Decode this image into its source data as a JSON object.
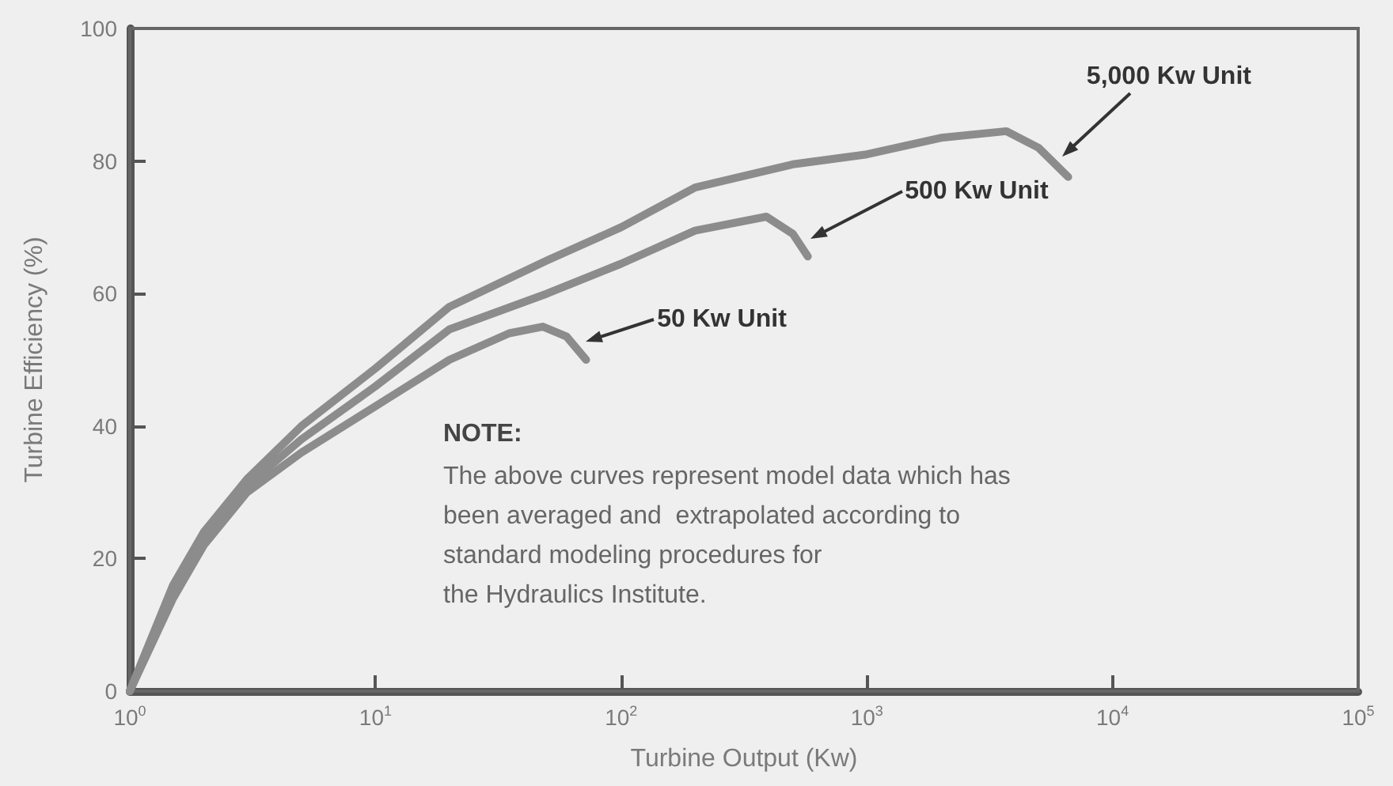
{
  "chart_data": {
    "type": "line",
    "xlabel": "Turbine Output (Kw)",
    "ylabel": "Turbine Efficiency (%)",
    "log": "x",
    "xlim": [
      1,
      100000
    ],
    "xticks": [
      {
        "value": 1,
        "label": "10$^{0}$"
      },
      {
        "value": 10,
        "label": "10$^{1}$"
      },
      {
        "value": 100,
        "label": "10$^{2}$"
      },
      {
        "value": 1000,
        "label": "10$^{3}$"
      },
      {
        "value": 10000,
        "label": "10$^{4}$"
      },
      {
        "value": 100000,
        "label": "10$^{5}$"
      }
    ],
    "ylim": [
      0,
      100
    ],
    "yticks": [
      0,
      20,
      40,
      60,
      80,
      100
    ],
    "grid": false,
    "legend": false,
    "marker": "none",
    "line_style": "solid",
    "series": [
      {
        "name": "5,000 Kw Unit",
        "color": "#8c8c8c",
        "x": [
          1,
          1.5,
          2,
          3,
          5,
          10,
          20,
          50,
          100,
          200,
          500,
          1000,
          2000,
          3700,
          5000,
          6600
        ],
        "values": [
          0,
          16,
          24,
          32,
          40,
          48.7,
          58,
          65,
          70,
          76,
          79.5,
          81,
          83.5,
          84.5,
          82,
          77.6
        ]
      },
      {
        "name": "500 Kw Unit",
        "color": "#8c8c8c",
        "x": [
          1,
          1.5,
          2,
          3,
          5,
          10,
          20,
          50,
          100,
          200,
          390,
          500,
          575
        ],
        "values": [
          0,
          15,
          23,
          31,
          38,
          46,
          54.6,
          60,
          64.5,
          69.5,
          71.6,
          69,
          65.6
        ]
      },
      {
        "name": "50 Kw Unit",
        "color": "#8c8c8c",
        "x": [
          1,
          1.5,
          2,
          3,
          5,
          10,
          20,
          35,
          48,
          60,
          72
        ],
        "values": [
          0,
          14,
          22,
          30,
          36,
          43,
          50,
          54,
          55,
          53.5,
          50
        ]
      }
    ],
    "annotations": [
      "NOTE:",
      "The above curves represent model data which has\nbeen averaged and  extrapolated according to\nstandard modeling procedures for\nthe Hydraulics Institute."
    ]
  }
}
